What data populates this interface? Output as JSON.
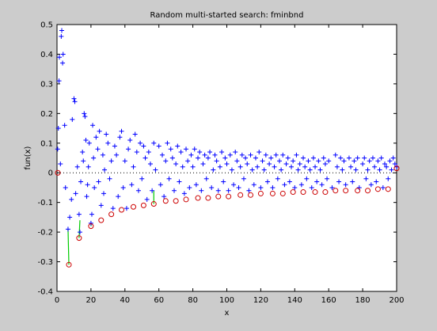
{
  "chart_data": {
    "type": "scatter",
    "title": "Random multi-started search: fminbnd",
    "xlabel": "x",
    "ylabel": "fun(x)",
    "xlim": [
      0,
      200
    ],
    "ylim": [
      -0.4,
      0.5
    ],
    "xticks": [
      "0",
      "20",
      "40",
      "60",
      "80",
      "100",
      "120",
      "140",
      "160",
      "180",
      "200"
    ],
    "yticks": [
      "-0.4",
      "-0.3",
      "-0.2",
      "-0.1",
      "0",
      "0.1",
      "0.2",
      "0.3",
      "0.4",
      "0.5"
    ],
    "grid": false,
    "zero_line": "dotted",
    "series": [
      {
        "marker": "+",
        "color": "#0000ff",
        "points": [
          [
            0.4,
            0.08
          ],
          [
            0.8,
            0.15
          ],
          [
            1.2,
            0.31
          ],
          [
            1.4,
            0.39
          ],
          [
            2.5,
            0.46
          ],
          [
            2.8,
            0.48
          ],
          [
            3.3,
            0.37
          ],
          [
            3.6,
            0.4
          ],
          [
            2,
            0.03
          ],
          [
            4.5,
            0.16
          ],
          [
            5,
            -0.05
          ],
          [
            6.5,
            -0.19
          ],
          [
            7.5,
            -0.15
          ],
          [
            8.5,
            -0.09
          ],
          [
            9,
            0.18
          ],
          [
            10,
            0.25
          ],
          [
            10.5,
            0.24
          ],
          [
            11,
            -0.07
          ],
          [
            12,
            0.02
          ],
          [
            13,
            -0.14
          ],
          [
            13.5,
            -0.2
          ],
          [
            14,
            -0.03
          ],
          [
            15,
            0.07
          ],
          [
            15.5,
            0.04
          ],
          [
            16,
            0.2
          ],
          [
            16.5,
            0.19
          ],
          [
            17,
            0.11
          ],
          [
            17.5,
            -0.08
          ],
          [
            18,
            -0.04
          ],
          [
            18.5,
            0.02
          ],
          [
            19,
            0.1
          ],
          [
            20,
            -0.17
          ],
          [
            20.5,
            -0.14
          ],
          [
            21,
            0.16
          ],
          [
            21.5,
            0.05
          ],
          [
            22,
            -0.05
          ],
          [
            23,
            0.12
          ],
          [
            24,
            0.08
          ],
          [
            24.5,
            -0.03
          ],
          [
            25,
            0.14
          ],
          [
            26,
            -0.11
          ],
          [
            27,
            0.06
          ],
          [
            27.5,
            -0.07
          ],
          [
            28,
            0.01
          ],
          [
            29,
            0.13
          ],
          [
            30,
            0.1
          ],
          [
            31,
            -0.02
          ],
          [
            32,
            0.04
          ],
          [
            33,
            -0.12
          ],
          [
            34,
            0.09
          ],
          [
            35,
            0.06
          ],
          [
            36,
            -0.08
          ],
          [
            37,
            0.12
          ],
          [
            38,
            0.14
          ],
          [
            39,
            -0.05
          ],
          [
            40,
            0.04
          ],
          [
            41,
            -0.12
          ],
          [
            42,
            0.08
          ],
          [
            43,
            0.11
          ],
          [
            44,
            -0.04
          ],
          [
            45,
            0.02
          ],
          [
            46,
            0.13
          ],
          [
            47,
            0.07
          ],
          [
            48,
            -0.06
          ],
          [
            49,
            0.1
          ],
          [
            50,
            -0.02
          ],
          [
            51,
            0.09
          ],
          [
            52,
            0.05
          ],
          [
            53,
            -0.09
          ],
          [
            54,
            0.07
          ],
          [
            55,
            0.03
          ],
          [
            56,
            -0.06
          ],
          [
            57,
            0.1
          ],
          [
            58,
            0.01
          ],
          [
            60,
            0.09
          ],
          [
            61,
            -0.04
          ],
          [
            62,
            0.06
          ],
          [
            63,
            -0.08
          ],
          [
            64,
            0.04
          ],
          [
            65,
            0.1
          ],
          [
            66,
            -0.02
          ],
          [
            67,
            0.08
          ],
          [
            68,
            0.05
          ],
          [
            69,
            -0.06
          ],
          [
            70,
            0.03
          ],
          [
            71,
            0.09
          ],
          [
            72,
            -0.03
          ],
          [
            73,
            0.07
          ],
          [
            74,
            0.02
          ],
          [
            75,
            -0.07
          ],
          [
            76,
            0.08
          ],
          [
            77,
            0.04
          ],
          [
            78,
            -0.05
          ],
          [
            79,
            0.06
          ],
          [
            80,
            0.02
          ],
          [
            81,
            0.08
          ],
          [
            82,
            -0.04
          ],
          [
            83,
            0.05
          ],
          [
            84,
            0.07
          ],
          [
            85,
            -0.06
          ],
          [
            86,
            0.03
          ],
          [
            87,
            0.06
          ],
          [
            88,
            -0.02
          ],
          [
            89,
            0.05
          ],
          [
            90,
            0.07
          ],
          [
            91,
            -0.05
          ],
          [
            92,
            0.01
          ],
          [
            93,
            0.06
          ],
          [
            94,
            0.04
          ],
          [
            95,
            -0.06
          ],
          [
            96,
            0.02
          ],
          [
            97,
            0.07
          ],
          [
            98,
            -0.03
          ],
          [
            99,
            0.05
          ],
          [
            100,
            0.03
          ],
          [
            101,
            -0.06
          ],
          [
            102,
            0.06
          ],
          [
            103,
            0.01
          ],
          [
            104,
            -0.04
          ],
          [
            105,
            0.07
          ],
          [
            106,
            0.04
          ],
          [
            107,
            -0.05
          ],
          [
            108,
            0.02
          ],
          [
            109,
            0.06
          ],
          [
            110,
            -0.02
          ],
          [
            111,
            0.05
          ],
          [
            112,
            0.03
          ],
          [
            113,
            -0.06
          ],
          [
            114,
            0.06
          ],
          [
            115,
            0.01
          ],
          [
            116,
            -0.04
          ],
          [
            117,
            0.05
          ],
          [
            118,
            0.02
          ],
          [
            119,
            0.07
          ],
          [
            120,
            -0.05
          ],
          [
            121,
            0.04
          ],
          [
            122,
            0.01
          ],
          [
            123,
            0.06
          ],
          [
            124,
            -0.03
          ],
          [
            125,
            0.03
          ],
          [
            126,
            0.05
          ],
          [
            127,
            -0.05
          ],
          [
            128,
            0.02
          ],
          [
            129,
            0.06
          ],
          [
            130,
            -0.02
          ],
          [
            131,
            0.04
          ],
          [
            132,
            0.01
          ],
          [
            133,
            0.06
          ],
          [
            134,
            -0.04
          ],
          [
            135,
            0.03
          ],
          [
            136,
            0.05
          ],
          [
            137,
            -0.03
          ],
          [
            138,
            0.02
          ],
          [
            139,
            0.04
          ],
          [
            140,
            -0.05
          ],
          [
            141,
            0.06
          ],
          [
            142,
            0.01
          ],
          [
            143,
            0.03
          ],
          [
            144,
            -0.04
          ],
          [
            145,
            0.05
          ],
          [
            146,
            0.02
          ],
          [
            147,
            -0.02
          ],
          [
            148,
            0.04
          ],
          [
            149,
            0.01
          ],
          [
            150,
            -0.05
          ],
          [
            151,
            0.05
          ],
          [
            152,
            0.02
          ],
          [
            153,
            -0.03
          ],
          [
            154,
            0.04
          ],
          [
            155,
            0.01
          ],
          [
            156,
            -0.04
          ],
          [
            157,
            0.05
          ],
          [
            158,
            0.03
          ],
          [
            159,
            -0.02
          ],
          [
            160,
            0.04
          ],
          [
            162,
            -0.05
          ],
          [
            164,
            0.06
          ],
          [
            165,
            0.02
          ],
          [
            166,
            -0.03
          ],
          [
            167,
            0.05
          ],
          [
            168,
            0.01
          ],
          [
            169,
            0.04
          ],
          [
            170,
            -0.04
          ],
          [
            172,
            0.05
          ],
          [
            173,
            0.02
          ],
          [
            174,
            -0.03
          ],
          [
            175,
            0.04
          ],
          [
            176,
            0.01
          ],
          [
            177,
            0.05
          ],
          [
            178,
            -0.05
          ],
          [
            180,
            0.03
          ],
          [
            181,
            0.05
          ],
          [
            182,
            -0.02
          ],
          [
            183,
            0.01
          ],
          [
            184,
            0.04
          ],
          [
            185,
            -0.04
          ],
          [
            186,
            0.05
          ],
          [
            187,
            0.02
          ],
          [
            188,
            -0.03
          ],
          [
            189,
            0.04
          ],
          [
            190,
            0.01
          ],
          [
            191,
            0.05
          ],
          [
            192,
            -0.05
          ],
          [
            193,
            0.03
          ],
          [
            194,
            0.02
          ],
          [
            195,
            -0.02
          ],
          [
            196,
            0.04
          ],
          [
            197,
            0.01
          ],
          [
            198,
            0.05
          ],
          [
            199,
            0.03
          ],
          [
            200,
            0.02
          ]
        ]
      },
      {
        "marker": "o",
        "color": "#cc0000",
        "points": [
          [
            0.5,
            0.0
          ],
          [
            7,
            -0.31
          ],
          [
            13,
            -0.22
          ],
          [
            20,
            -0.18
          ],
          [
            26,
            -0.16
          ],
          [
            32,
            -0.14
          ],
          [
            38,
            -0.125
          ],
          [
            45,
            -0.115
          ],
          [
            51,
            -0.11
          ],
          [
            57,
            -0.105
          ],
          [
            64,
            -0.095
          ],
          [
            70,
            -0.095
          ],
          [
            76,
            -0.09
          ],
          [
            83,
            -0.085
          ],
          [
            89,
            -0.085
          ],
          [
            95,
            -0.08
          ],
          [
            101,
            -0.08
          ],
          [
            108,
            -0.075
          ],
          [
            114,
            -0.075
          ],
          [
            120,
            -0.07
          ],
          [
            127,
            -0.07
          ],
          [
            133,
            -0.07
          ],
          [
            139,
            -0.065
          ],
          [
            145,
            -0.065
          ],
          [
            152,
            -0.065
          ],
          [
            158,
            -0.065
          ],
          [
            164,
            -0.06
          ],
          [
            170,
            -0.06
          ],
          [
            177,
            -0.06
          ],
          [
            183,
            -0.06
          ],
          [
            189,
            -0.055
          ],
          [
            195,
            -0.055
          ],
          [
            200,
            0.015
          ]
        ]
      }
    ]
  }
}
